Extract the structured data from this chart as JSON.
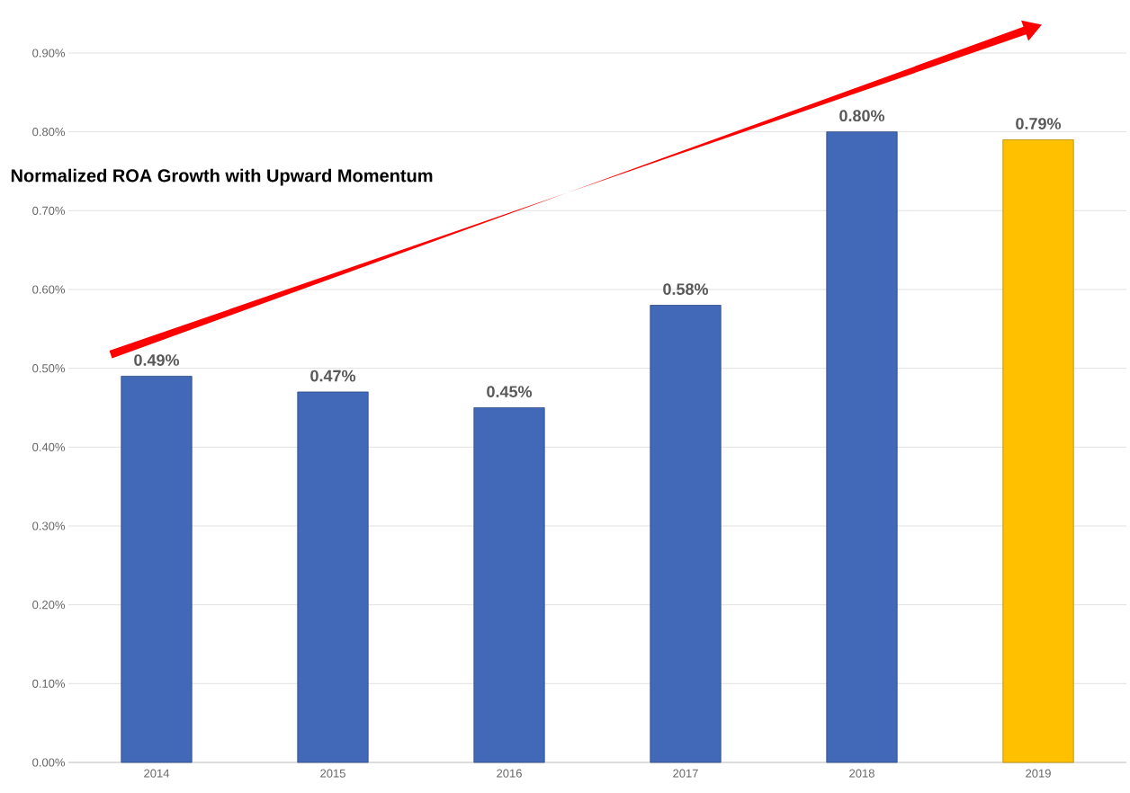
{
  "chart_data": {
    "type": "bar",
    "title": "Normalized ROA Growth with Upward Momentum",
    "categories": [
      "2014",
      "2015",
      "2016",
      "2017",
      "2018",
      "2019"
    ],
    "values": [
      0.49,
      0.47,
      0.45,
      0.58,
      0.8,
      0.79
    ],
    "colors": [
      "#4169b8",
      "#4169b8",
      "#4169b8",
      "#4169b8",
      "#4169b8",
      "#ffc000"
    ],
    "value_labels": [
      "0.49%",
      "0.47%",
      "0.45%",
      "0.58%",
      "0.80%",
      "0.79%"
    ],
    "ylim": [
      0,
      0.9
    ],
    "yticks": [
      {
        "value": 0,
        "label": "0.00%"
      },
      {
        "value": 0.1,
        "label": "0.10%"
      },
      {
        "value": 0.2,
        "label": "0.20%"
      },
      {
        "value": 0.3,
        "label": "0.30%"
      },
      {
        "value": 0.4,
        "label": "0.40%"
      },
      {
        "value": 0.5,
        "label": "0.50%"
      },
      {
        "value": 0.6,
        "label": "0.60%"
      },
      {
        "value": 0.7,
        "label": "0.70%"
      },
      {
        "value": 0.8,
        "label": "0.80%"
      },
      {
        "value": 0.9,
        "label": "0.90%"
      }
    ],
    "grid": "y"
  }
}
